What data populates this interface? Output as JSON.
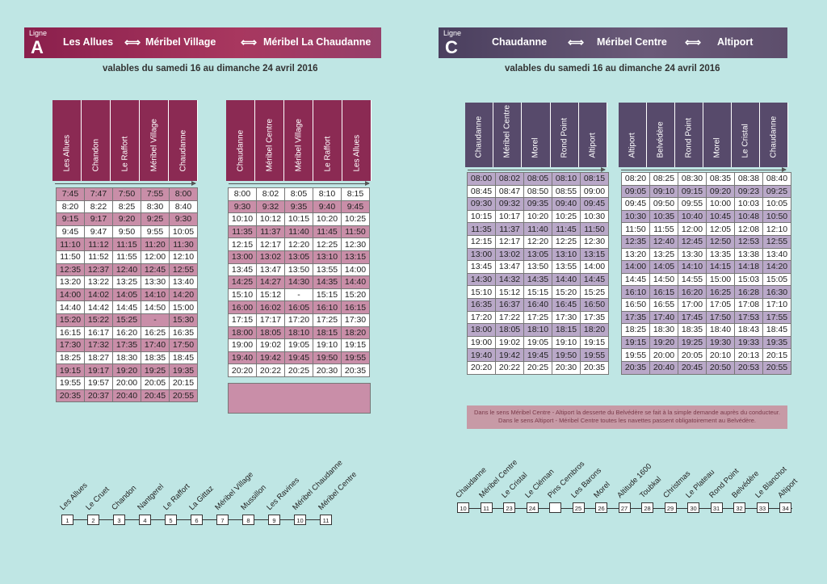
{
  "lineA": {
    "ligne_label": "Ligne",
    "letter": "A",
    "route": [
      "Les Allues",
      "Méribel Village",
      "Méribel La Chaudanne"
    ],
    "validity": "valables du samedi 16 au dimanche 24 avril 2016",
    "outbound": {
      "headers": [
        "Les Allues",
        "Chandon",
        "Le Raffort",
        "Méribel Village",
        "Chaudanne"
      ],
      "rows": [
        [
          "7:45",
          "7:47",
          "7:50",
          "7:55",
          "8:00"
        ],
        [
          "8:20",
          "8:22",
          "8:25",
          "8:30",
          "8:40"
        ],
        [
          "9:15",
          "9:17",
          "9:20",
          "9:25",
          "9:30"
        ],
        [
          "9:45",
          "9:47",
          "9:50",
          "9:55",
          "10:05"
        ],
        [
          "11:10",
          "11:12",
          "11:15",
          "11:20",
          "11:30"
        ],
        [
          "11:50",
          "11:52",
          "11:55",
          "12:00",
          "12:10"
        ],
        [
          "12:35",
          "12:37",
          "12:40",
          "12:45",
          "12:55"
        ],
        [
          "13:20",
          "13:22",
          "13:25",
          "13:30",
          "13:40"
        ],
        [
          "14:00",
          "14:02",
          "14:05",
          "14:10",
          "14:20"
        ],
        [
          "14:40",
          "14:42",
          "14:45",
          "14:50",
          "15:00"
        ],
        [
          "15:20",
          "15:22",
          "15:25",
          "-",
          "15:30"
        ],
        [
          "16:15",
          "16:17",
          "16:20",
          "16:25",
          "16:35"
        ],
        [
          "17:30",
          "17:32",
          "17:35",
          "17:40",
          "17:50"
        ],
        [
          "18:25",
          "18:27",
          "18:30",
          "18:35",
          "18:45"
        ],
        [
          "19:15",
          "19:17",
          "19:20",
          "19:25",
          "19:35"
        ],
        [
          "19:55",
          "19:57",
          "20:00",
          "20:05",
          "20:15"
        ],
        [
          "20:35",
          "20:37",
          "20:40",
          "20:45",
          "20:55"
        ]
      ]
    },
    "return": {
      "headers": [
        "Chaudanne",
        "Méribel Centre",
        "Méribel Village",
        "Le Raffort",
        "Les Allues"
      ],
      "rows": [
        [
          "8:00",
          "8:02",
          "8:05",
          "8:10",
          "8:15"
        ],
        [
          "9:30",
          "9:32",
          "9:35",
          "9:40",
          "9:45"
        ],
        [
          "10:10",
          "10:12",
          "10:15",
          "10:20",
          "10:25"
        ],
        [
          "11:35",
          "11:37",
          "11:40",
          "11:45",
          "11:50"
        ],
        [
          "12:15",
          "12:17",
          "12:20",
          "12:25",
          "12:30"
        ],
        [
          "13:00",
          "13:02",
          "13:05",
          "13:10",
          "13:15"
        ],
        [
          "13:45",
          "13:47",
          "13:50",
          "13:55",
          "14:00"
        ],
        [
          "14:25",
          "14:27",
          "14:30",
          "14:35",
          "14:40"
        ],
        [
          "15:10",
          "15:12",
          "-",
          "15:15",
          "15:20"
        ],
        [
          "16:00",
          "16:02",
          "16:05",
          "16:10",
          "16:15"
        ],
        [
          "17:15",
          "17:17",
          "17:20",
          "17:25",
          "17:30"
        ],
        [
          "18:00",
          "18:05",
          "18:10",
          "18:15",
          "18:20"
        ],
        [
          "19:00",
          "19:02",
          "19:05",
          "19:10",
          "19:15"
        ],
        [
          "19:40",
          "19:42",
          "19:45",
          "19:50",
          "19:55"
        ],
        [
          "20:20",
          "20:22",
          "20:25",
          "20:30",
          "20:35"
        ]
      ]
    },
    "stops": [
      {
        "n": "1",
        "name": "Les Allues"
      },
      {
        "n": "2",
        "name": "Le Cruet"
      },
      {
        "n": "3",
        "name": "Chandon"
      },
      {
        "n": "4",
        "name": "Nantgerel"
      },
      {
        "n": "5",
        "name": "Le Raffort"
      },
      {
        "n": "6",
        "name": "La Gittaz"
      },
      {
        "n": "7",
        "name": "Méribel Village"
      },
      {
        "n": "8",
        "name": "Mussillon"
      },
      {
        "n": "9",
        "name": "Les Ravines"
      },
      {
        "n": "10",
        "name": "Méribel Chaudanne"
      },
      {
        "n": "11",
        "name": "Méribel Centre"
      }
    ]
  },
  "lineC": {
    "ligne_label": "Ligne",
    "letter": "C",
    "route": [
      "Chaudanne",
      "Méribel Centre",
      "Altiport"
    ],
    "validity": "valables du samedi 16 au dimanche 24 avril 2016",
    "outbound": {
      "headers": [
        "Chaudanne",
        "Méribel Centre",
        "Morel",
        "Rond Point",
        "Altiport"
      ],
      "rows": [
        [
          "08:00",
          "08:02",
          "08:05",
          "08:10",
          "08:15"
        ],
        [
          "08:45",
          "08:47",
          "08:50",
          "08:55",
          "09:00"
        ],
        [
          "09:30",
          "09:32",
          "09:35",
          "09:40",
          "09:45"
        ],
        [
          "10:15",
          "10:17",
          "10:20",
          "10:25",
          "10:30"
        ],
        [
          "11:35",
          "11:37",
          "11:40",
          "11:45",
          "11:50"
        ],
        [
          "12:15",
          "12:17",
          "12:20",
          "12:25",
          "12:30"
        ],
        [
          "13:00",
          "13:02",
          "13:05",
          "13:10",
          "13:15"
        ],
        [
          "13:45",
          "13:47",
          "13:50",
          "13:55",
          "14:00"
        ],
        [
          "14:30",
          "14:32",
          "14:35",
          "14:40",
          "14:45"
        ],
        [
          "15:10",
          "15:12",
          "15:15",
          "15:20",
          "15:25"
        ],
        [
          "16:35",
          "16:37",
          "16:40",
          "16:45",
          "16:50"
        ],
        [
          "17:20",
          "17:22",
          "17:25",
          "17:30",
          "17:35"
        ],
        [
          "18:00",
          "18:05",
          "18:10",
          "18:15",
          "18:20"
        ],
        [
          "19:00",
          "19:02",
          "19:05",
          "19:10",
          "19:15"
        ],
        [
          "19:40",
          "19:42",
          "19:45",
          "19:50",
          "19:55"
        ],
        [
          "20:20",
          "20:22",
          "20:25",
          "20:30",
          "20:35"
        ]
      ]
    },
    "return": {
      "headers": [
        "Altiport",
        "Belvédère",
        "Rond Point",
        "Morel",
        "Le Cristal",
        "Chaudanne"
      ],
      "rows": [
        [
          "08:20",
          "08:25",
          "08:30",
          "08:35",
          "08:38",
          "08:40"
        ],
        [
          "09:05",
          "09:10",
          "09:15",
          "09:20",
          "09:23",
          "09:25"
        ],
        [
          "09:45",
          "09:50",
          "09:55",
          "10:00",
          "10:03",
          "10:05"
        ],
        [
          "10:30",
          "10:35",
          "10:40",
          "10:45",
          "10:48",
          "10:50"
        ],
        [
          "11:50",
          "11:55",
          "12:00",
          "12:05",
          "12:08",
          "12:10"
        ],
        [
          "12:35",
          "12:40",
          "12:45",
          "12:50",
          "12:53",
          "12:55"
        ],
        [
          "13:20",
          "13:25",
          "13:30",
          "13:35",
          "13:38",
          "13:40"
        ],
        [
          "14:00",
          "14:05",
          "14:10",
          "14:15",
          "14:18",
          "14:20"
        ],
        [
          "14:45",
          "14:50",
          "14:55",
          "15:00",
          "15:03",
          "15:05"
        ],
        [
          "16:10",
          "16:15",
          "16:20",
          "16:25",
          "16:28",
          "16:30"
        ],
        [
          "16:50",
          "16:55",
          "17:00",
          "17:05",
          "17:08",
          "17:10"
        ],
        [
          "17:35",
          "17:40",
          "17:45",
          "17:50",
          "17:53",
          "17:55"
        ],
        [
          "18:25",
          "18:30",
          "18:35",
          "18:40",
          "18:43",
          "18:45"
        ],
        [
          "19:15",
          "19:20",
          "19:25",
          "19:30",
          "19:33",
          "19:35"
        ],
        [
          "19:55",
          "20:00",
          "20:05",
          "20:10",
          "20:13",
          "20:15"
        ],
        [
          "20:35",
          "20:40",
          "20:45",
          "20:50",
          "20:53",
          "20:55"
        ]
      ]
    },
    "note": [
      "Dans le sens Méribel Centre - Altiport la desserte du Belvédère se fait à la simple demande auprès du conducteur.",
      "Dans le sens Altiport - Méribel Centre toutes les navettes passent obligatoirement au Belvédère."
    ],
    "stops": [
      {
        "n": "10",
        "name": "Chaudanne"
      },
      {
        "n": "11",
        "name": "Méribel Centre"
      },
      {
        "n": "23",
        "name": "Le Cristal"
      },
      {
        "n": "24",
        "name": "Le Cléman"
      },
      {
        "n": "",
        "name": "Pins Cembros"
      },
      {
        "n": "25",
        "name": "Les Barons"
      },
      {
        "n": "26",
        "name": "Morel"
      },
      {
        "n": "27",
        "name": "Altitude 1600"
      },
      {
        "n": "28",
        "name": "Toubkal"
      },
      {
        "n": "29",
        "name": "Christmas"
      },
      {
        "n": "30",
        "name": "Le Plateau"
      },
      {
        "n": "31",
        "name": "Rond Point"
      },
      {
        "n": "32",
        "name": "Belvédère"
      },
      {
        "n": "33",
        "name": "Le Blanchot"
      },
      {
        "n": "34",
        "name": "Altiport"
      }
    ]
  }
}
